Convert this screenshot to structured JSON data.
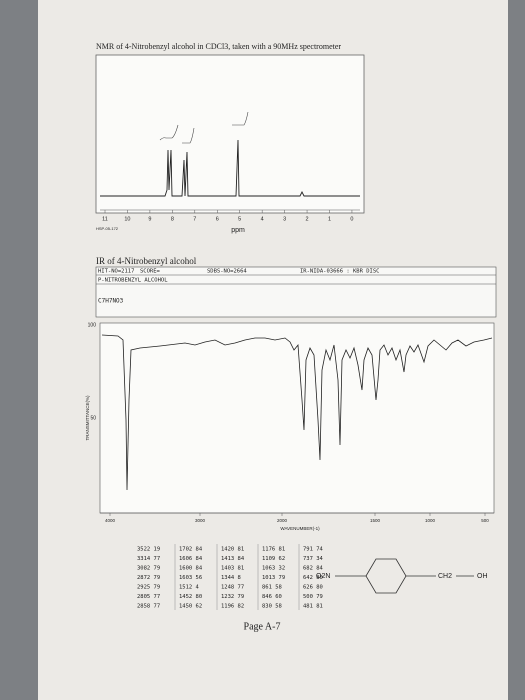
{
  "nmr": {
    "title": "NMR of 4-Nitrobenzyl alcohol in CDCl3, taken with a 90MHz spectrometer",
    "ticks": [
      "11",
      "10",
      "9",
      "8",
      "7",
      "6",
      "5",
      "4",
      "3",
      "2",
      "1",
      "0"
    ],
    "axis_label": "ppm",
    "code": "HSP-05-172"
  },
  "ir": {
    "title": "IR of 4-Nitrobenzyl alcohol",
    "header": [
      "HIT-NO=2117",
      "SCORE=",
      "SDBS-NO=2664",
      "IR-NIDA-03666 : KBR DISC"
    ],
    "name": "P-NITROBENZYL ALCOHOL",
    "formula": "C7H7NO3",
    "y_top": "100",
    "y_mid": "50",
    "y_label": "TRANSMITTANCE(%)",
    "xticks": [
      "4000",
      "3000",
      "2000",
      "1500",
      "1000",
      "500"
    ],
    "x_label": "WAVENUMBER(-1)"
  },
  "peak_table": {
    "columns": [
      [
        "3522 19",
        "3314 77",
        "3082 79",
        "2872 79",
        "2925 79",
        "2805 77",
        "2858 77"
      ],
      [
        "1702 84",
        "1606 84",
        "1600 84",
        "1603 56",
        "1512 4",
        "1452 80",
        "1450 62"
      ],
      [
        "1420 81",
        "1413 84",
        "1403 81",
        "1344 8",
        "1248 77",
        "1232 79",
        "1196 82"
      ],
      [
        "1176 81",
        "1109 62",
        "1063 32",
        "1013 79",
        "861 58",
        "846 60",
        "830 58"
      ],
      [
        "791 74",
        "737 34",
        "682 84",
        "642 80",
        "626 80",
        "500 79",
        "481 81"
      ]
    ]
  },
  "structure": {
    "left": "O2N",
    "middle": "CH2",
    "right": "OH"
  },
  "footer": "Page A-7"
}
